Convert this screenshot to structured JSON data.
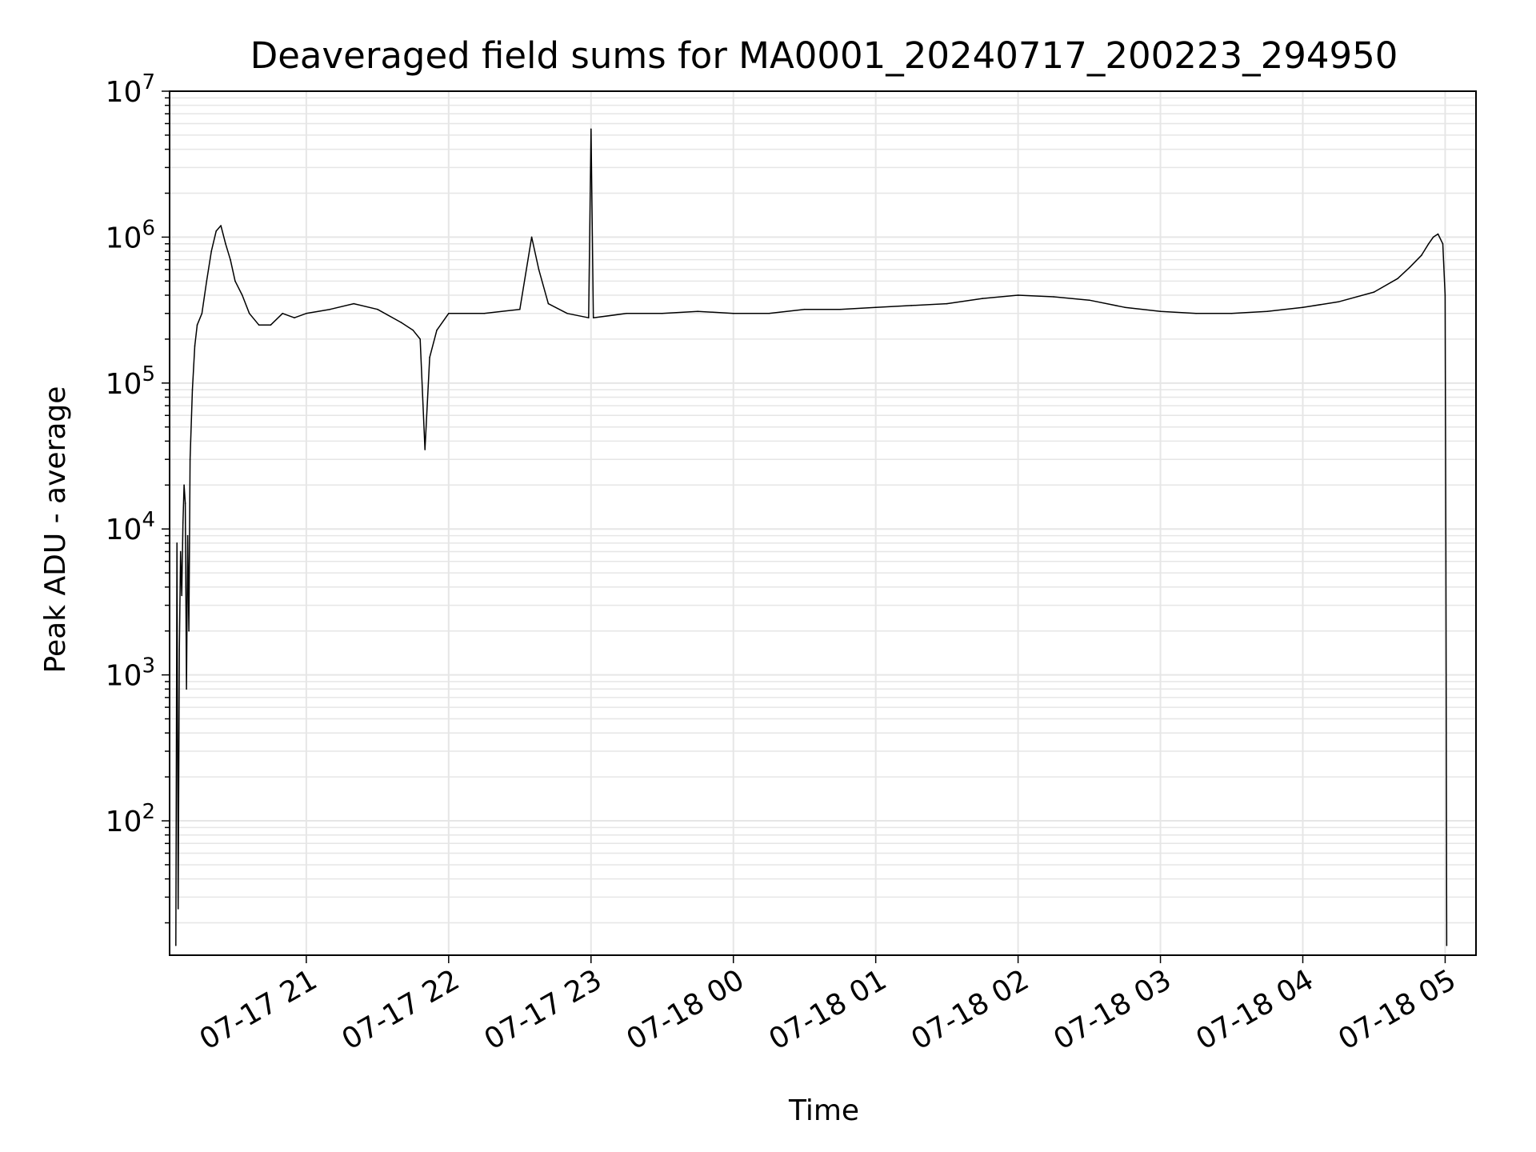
{
  "chart_data": {
    "type": "line",
    "title": "Deaveraged field sums for MA0001_20240717_200223_294950",
    "xlabel": "Time",
    "ylabel": "Peak ADU - average",
    "y_scale": "log",
    "ylim": [
      12,
      10000000
    ],
    "xlim": [
      "2024-07-17T20:02:23",
      "2024-07-18T05:13:00"
    ],
    "grid": true,
    "legend": "none",
    "line_color": "#000000",
    "grid_color": "#e6e6e6",
    "x_tick_labels": [
      {
        "value": "2024-07-17T21:00:00",
        "label": "07-17 21"
      },
      {
        "value": "2024-07-17T22:00:00",
        "label": "07-17 22"
      },
      {
        "value": "2024-07-17T23:00:00",
        "label": "07-17 23"
      },
      {
        "value": "2024-07-18T00:00:00",
        "label": "07-18 00"
      },
      {
        "value": "2024-07-18T01:00:00",
        "label": "07-18 01"
      },
      {
        "value": "2024-07-18T02:00:00",
        "label": "07-18 02"
      },
      {
        "value": "2024-07-18T03:00:00",
        "label": "07-18 03"
      },
      {
        "value": "2024-07-18T04:00:00",
        "label": "07-18 04"
      },
      {
        "value": "2024-07-18T05:00:00",
        "label": "07-18 05"
      }
    ],
    "y_tick_labels": [
      {
        "value": 100,
        "base": "10",
        "exp": "2"
      },
      {
        "value": 1000,
        "base": "10",
        "exp": "3"
      },
      {
        "value": 10000,
        "base": "10",
        "exp": "4"
      },
      {
        "value": 100000,
        "base": "10",
        "exp": "5"
      },
      {
        "value": 1000000,
        "base": "10",
        "exp": "6"
      },
      {
        "value": 10000000,
        "base": "10",
        "exp": "7"
      }
    ],
    "series": [
      {
        "x": [
          "2024-07-17T20:05:00",
          "2024-07-17T20:05:30",
          "2024-07-17T20:06:00",
          "2024-07-17T20:06:30",
          "2024-07-17T20:07:00",
          "2024-07-17T20:07:30",
          "2024-07-17T20:08:00",
          "2024-07-17T20:08:30",
          "2024-07-17T20:09:00",
          "2024-07-17T20:09:30",
          "2024-07-17T20:10:00",
          "2024-07-17T20:10:30",
          "2024-07-17T20:11:00",
          "2024-07-17T20:12:00",
          "2024-07-17T20:13:00",
          "2024-07-17T20:14:00",
          "2024-07-17T20:16:00",
          "2024-07-17T20:18:00",
          "2024-07-17T20:20:00",
          "2024-07-17T20:22:00",
          "2024-07-17T20:24:00",
          "2024-07-17T20:26:00",
          "2024-07-17T20:28:00",
          "2024-07-17T20:30:00",
          "2024-07-17T20:33:00",
          "2024-07-17T20:36:00",
          "2024-07-17T20:40:00",
          "2024-07-17T20:45:00",
          "2024-07-17T20:50:00",
          "2024-07-17T20:55:00",
          "2024-07-17T21:00:00",
          "2024-07-17T21:10:00",
          "2024-07-17T21:20:00",
          "2024-07-17T21:30:00",
          "2024-07-17T21:40:00",
          "2024-07-17T21:45:00",
          "2024-07-17T21:48:00",
          "2024-07-17T21:50:00",
          "2024-07-17T21:52:00",
          "2024-07-17T21:55:00",
          "2024-07-17T22:00:00",
          "2024-07-17T22:15:00",
          "2024-07-17T22:30:00",
          "2024-07-17T22:35:00",
          "2024-07-17T22:38:00",
          "2024-07-17T22:42:00",
          "2024-07-17T22:50:00",
          "2024-07-17T22:59:00",
          "2024-07-17T23:00:00",
          "2024-07-17T23:01:00",
          "2024-07-17T23:15:00",
          "2024-07-17T23:30:00",
          "2024-07-17T23:45:00",
          "2024-07-18T00:00:00",
          "2024-07-18T00:15:00",
          "2024-07-18T00:30:00",
          "2024-07-18T00:45:00",
          "2024-07-18T01:00:00",
          "2024-07-18T01:15:00",
          "2024-07-18T01:30:00",
          "2024-07-18T01:45:00",
          "2024-07-18T02:00:00",
          "2024-07-18T02:15:00",
          "2024-07-18T02:30:00",
          "2024-07-18T02:45:00",
          "2024-07-18T03:00:00",
          "2024-07-18T03:15:00",
          "2024-07-18T03:30:00",
          "2024-07-18T03:45:00",
          "2024-07-18T04:00:00",
          "2024-07-18T04:15:00",
          "2024-07-18T04:30:00",
          "2024-07-18T04:40:00",
          "2024-07-18T04:45:00",
          "2024-07-18T04:50:00",
          "2024-07-18T04:53:00",
          "2024-07-18T04:55:00",
          "2024-07-18T04:57:00",
          "2024-07-18T04:59:00",
          "2024-07-18T05:00:00",
          "2024-07-18T05:00:20",
          "2024-07-18T05:00:40"
        ],
        "y": [
          14,
          8000,
          25,
          1500,
          7000,
          3500,
          11000,
          20000,
          15000,
          800,
          9000,
          2000,
          30000,
          90000,
          180000,
          250000,
          300000,
          500000,
          800000,
          1100000,
          1200000,
          900000,
          700000,
          500000,
          400000,
          300000,
          250000,
          250000,
          300000,
          280000,
          300000,
          320000,
          350000,
          320000,
          260000,
          230000,
          200000,
          35000,
          150000,
          230000,
          300000,
          300000,
          320000,
          1000000,
          600000,
          350000,
          300000,
          280000,
          5500000,
          280000,
          300000,
          300000,
          310000,
          300000,
          300000,
          320000,
          320000,
          330000,
          340000,
          350000,
          380000,
          400000,
          390000,
          370000,
          330000,
          310000,
          300000,
          300000,
          310000,
          330000,
          360000,
          420000,
          520000,
          620000,
          750000,
          900000,
          1000000,
          1050000,
          900000,
          400000,
          6000,
          14
        ]
      }
    ]
  }
}
